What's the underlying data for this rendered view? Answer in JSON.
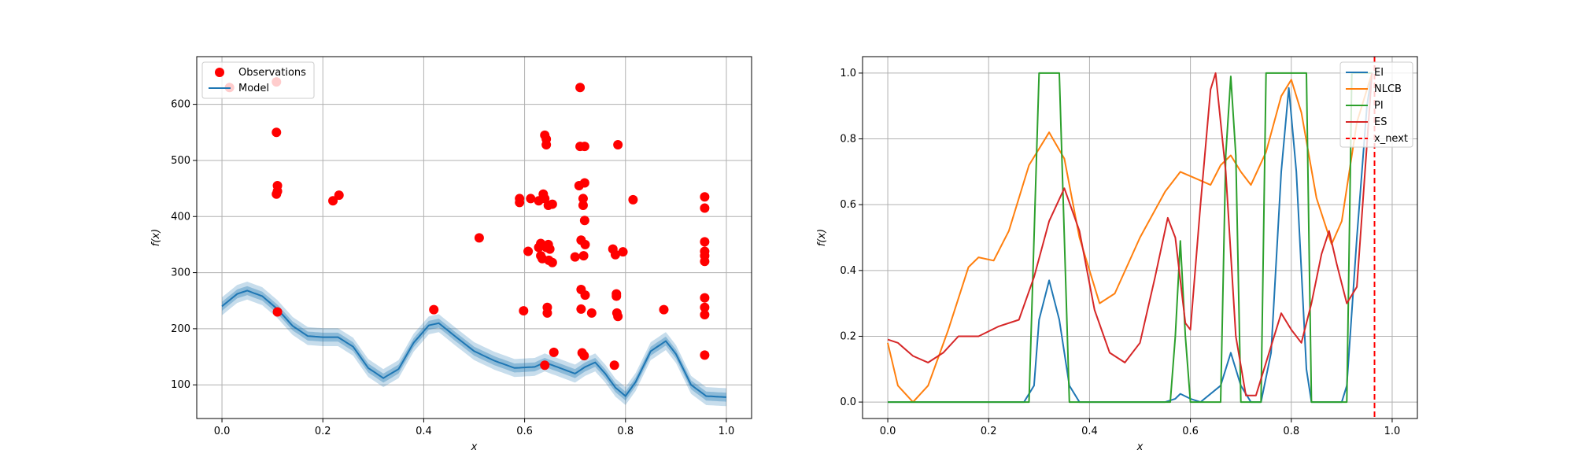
{
  "chart_data": [
    {
      "type": "scatter",
      "xlabel": "x",
      "ylabel": "f(x)",
      "xlim": [
        -0.05,
        1.05
      ],
      "ylim": [
        40,
        685
      ],
      "xticks": [
        0.0,
        0.2,
        0.4,
        0.6,
        0.8,
        1.0
      ],
      "xtick_labels": [
        "0.0",
        "0.2",
        "0.4",
        "0.6",
        "0.8",
        "1.0"
      ],
      "yticks": [
        100,
        200,
        300,
        400,
        500,
        600
      ],
      "ytick_labels": [
        "100",
        "200",
        "300",
        "400",
        "500",
        "600"
      ],
      "grid": true,
      "legend_position": "top-left",
      "legend": [
        "Observations",
        "Model"
      ],
      "colors": {
        "observations": "#ff0000",
        "model": "#1f77b4"
      },
      "observations": [
        [
          0.015,
          630
        ],
        [
          0.108,
          640
        ],
        [
          0.108,
          550
        ],
        [
          0.11,
          455
        ],
        [
          0.11,
          445
        ],
        [
          0.108,
          440
        ],
        [
          0.11,
          230
        ],
        [
          0.22,
          428
        ],
        [
          0.232,
          438
        ],
        [
          0.42,
          234
        ],
        [
          0.51,
          362
        ],
        [
          0.59,
          432
        ],
        [
          0.59,
          425
        ],
        [
          0.598,
          232
        ],
        [
          0.607,
          338
        ],
        [
          0.612,
          432
        ],
        [
          0.628,
          428
        ],
        [
          0.628,
          345
        ],
        [
          0.632,
          352
        ],
        [
          0.632,
          330
        ],
        [
          0.635,
          325
        ],
        [
          0.637,
          440
        ],
        [
          0.64,
          545
        ],
        [
          0.64,
          432
        ],
        [
          0.64,
          135
        ],
        [
          0.643,
          538
        ],
        [
          0.643,
          528
        ],
        [
          0.643,
          345
        ],
        [
          0.645,
          238
        ],
        [
          0.645,
          228
        ],
        [
          0.647,
          420
        ],
        [
          0.647,
          350
        ],
        [
          0.648,
          322
        ],
        [
          0.65,
          342
        ],
        [
          0.655,
          422
        ],
        [
          0.655,
          318
        ],
        [
          0.658,
          158
        ],
        [
          0.7,
          328
        ],
        [
          0.708,
          455
        ],
        [
          0.71,
          630
        ],
        [
          0.71,
          525
        ],
        [
          0.712,
          358
        ],
        [
          0.712,
          270
        ],
        [
          0.712,
          235
        ],
        [
          0.714,
          157
        ],
        [
          0.716,
          432
        ],
        [
          0.716,
          420
        ],
        [
          0.717,
          330
        ],
        [
          0.718,
          152
        ],
        [
          0.719,
          525
        ],
        [
          0.719,
          460
        ],
        [
          0.719,
          393
        ],
        [
          0.72,
          350
        ],
        [
          0.72,
          260
        ],
        [
          0.733,
          228
        ],
        [
          0.775,
          342
        ],
        [
          0.778,
          135
        ],
        [
          0.78,
          332
        ],
        [
          0.782,
          262
        ],
        [
          0.782,
          258
        ],
        [
          0.783,
          228
        ],
        [
          0.785,
          222
        ],
        [
          0.785,
          528
        ],
        [
          0.795,
          337
        ],
        [
          0.815,
          430
        ],
        [
          0.876,
          234
        ],
        [
          0.957,
          435
        ],
        [
          0.957,
          415
        ],
        [
          0.957,
          355
        ],
        [
          0.957,
          338
        ],
        [
          0.957,
          330
        ],
        [
          0.957,
          320
        ],
        [
          0.957,
          255
        ],
        [
          0.957,
          238
        ],
        [
          0.957,
          225
        ],
        [
          0.957,
          153
        ]
      ],
      "model_mean": {
        "x": [
          0.0,
          0.03,
          0.05,
          0.08,
          0.11,
          0.14,
          0.17,
          0.2,
          0.23,
          0.26,
          0.29,
          0.32,
          0.35,
          0.38,
          0.41,
          0.43,
          0.46,
          0.5,
          0.54,
          0.58,
          0.62,
          0.64,
          0.67,
          0.7,
          0.72,
          0.74,
          0.76,
          0.78,
          0.8,
          0.82,
          0.85,
          0.88,
          0.9,
          0.93,
          0.96,
          1.0
        ],
        "y": [
          240,
          262,
          268,
          258,
          235,
          205,
          187,
          185,
          185,
          168,
          130,
          112,
          128,
          175,
          206,
          210,
          188,
          160,
          143,
          130,
          132,
          140,
          130,
          120,
          132,
          140,
          120,
          95,
          80,
          105,
          160,
          178,
          155,
          100,
          80,
          78
        ]
      },
      "band_widths": [
        8,
        16
      ]
    },
    {
      "type": "line",
      "xlabel": "x",
      "ylabel": "f(x)",
      "xlim": [
        -0.05,
        1.05
      ],
      "ylim": [
        -0.05,
        1.05
      ],
      "xticks": [
        0.0,
        0.2,
        0.4,
        0.6,
        0.8,
        1.0
      ],
      "xtick_labels": [
        "0.0",
        "0.2",
        "0.4",
        "0.6",
        "0.8",
        "1.0"
      ],
      "yticks": [
        0.0,
        0.2,
        0.4,
        0.6,
        0.8,
        1.0
      ],
      "ytick_labels": [
        "0.0",
        "0.2",
        "0.4",
        "0.6",
        "0.8",
        "1.0"
      ],
      "grid": true,
      "legend_position": "top-right",
      "legend": [
        "EI",
        "NLCB",
        "PI",
        "ES",
        "x_next"
      ],
      "series": [
        {
          "name": "EI",
          "color": "#1f77b4",
          "x": [
            0.0,
            0.27,
            0.29,
            0.3,
            0.32,
            0.34,
            0.36,
            0.38,
            0.55,
            0.57,
            0.58,
            0.6,
            0.62,
            0.66,
            0.68,
            0.7,
            0.72,
            0.74,
            0.76,
            0.78,
            0.795,
            0.81,
            0.83,
            0.84,
            0.85,
            0.9,
            0.91,
            0.93,
            0.95,
            0.96
          ],
          "y": [
            0.0,
            0.0,
            0.05,
            0.25,
            0.37,
            0.25,
            0.05,
            0.0,
            0.0,
            0.01,
            0.025,
            0.01,
            0.0,
            0.05,
            0.15,
            0.05,
            0.0,
            0.0,
            0.15,
            0.7,
            0.955,
            0.7,
            0.1,
            0.0,
            0.0,
            0.0,
            0.05,
            0.5,
            0.9,
            1.0
          ]
        },
        {
          "name": "NLCB",
          "color": "#ff7f0e",
          "x": [
            0.0,
            0.02,
            0.05,
            0.08,
            0.12,
            0.16,
            0.18,
            0.21,
            0.24,
            0.28,
            0.32,
            0.35,
            0.38,
            0.42,
            0.45,
            0.5,
            0.55,
            0.58,
            0.61,
            0.64,
            0.66,
            0.68,
            0.7,
            0.72,
            0.75,
            0.78,
            0.8,
            0.82,
            0.85,
            0.88,
            0.9,
            0.93,
            0.96
          ],
          "y": [
            0.18,
            0.05,
            0.0,
            0.05,
            0.22,
            0.41,
            0.44,
            0.43,
            0.52,
            0.72,
            0.82,
            0.74,
            0.5,
            0.3,
            0.33,
            0.5,
            0.64,
            0.7,
            0.68,
            0.66,
            0.72,
            0.75,
            0.7,
            0.66,
            0.76,
            0.93,
            0.98,
            0.88,
            0.62,
            0.48,
            0.55,
            0.85,
            1.0
          ]
        },
        {
          "name": "PI",
          "color": "#2ca02c",
          "x": [
            0.0,
            0.28,
            0.29,
            0.3,
            0.34,
            0.35,
            0.36,
            0.56,
            0.57,
            0.58,
            0.59,
            0.6,
            0.66,
            0.67,
            0.68,
            0.69,
            0.7,
            0.74,
            0.75,
            0.76,
            0.83,
            0.84,
            0.91,
            0.92,
            0.96
          ],
          "y": [
            0.0,
            0.0,
            0.5,
            1.0,
            1.0,
            0.5,
            0.0,
            0.0,
            0.2,
            0.49,
            0.2,
            0.0,
            0.0,
            0.75,
            0.99,
            0.75,
            0.0,
            0.0,
            1.0,
            1.0,
            1.0,
            0.0,
            0.0,
            1.0,
            1.0
          ]
        },
        {
          "name": "ES",
          "color": "#d62728",
          "x": [
            0.0,
            0.02,
            0.05,
            0.08,
            0.11,
            0.14,
            0.18,
            0.22,
            0.26,
            0.29,
            0.32,
            0.35,
            0.38,
            0.41,
            0.44,
            0.47,
            0.5,
            0.53,
            0.555,
            0.57,
            0.59,
            0.6,
            0.62,
            0.64,
            0.65,
            0.67,
            0.69,
            0.71,
            0.73,
            0.75,
            0.78,
            0.8,
            0.82,
            0.84,
            0.86,
            0.875,
            0.89,
            0.91,
            0.93,
            0.96
          ],
          "y": [
            0.19,
            0.18,
            0.14,
            0.12,
            0.15,
            0.2,
            0.2,
            0.23,
            0.25,
            0.38,
            0.55,
            0.65,
            0.52,
            0.28,
            0.15,
            0.12,
            0.18,
            0.38,
            0.56,
            0.5,
            0.24,
            0.22,
            0.6,
            0.95,
            1.0,
            0.7,
            0.2,
            0.02,
            0.02,
            0.12,
            0.27,
            0.22,
            0.18,
            0.3,
            0.45,
            0.52,
            0.42,
            0.3,
            0.35,
            1.0
          ]
        }
      ],
      "x_next": {
        "name": "x_next",
        "x": 0.965,
        "color": "#ff0000"
      }
    }
  ]
}
